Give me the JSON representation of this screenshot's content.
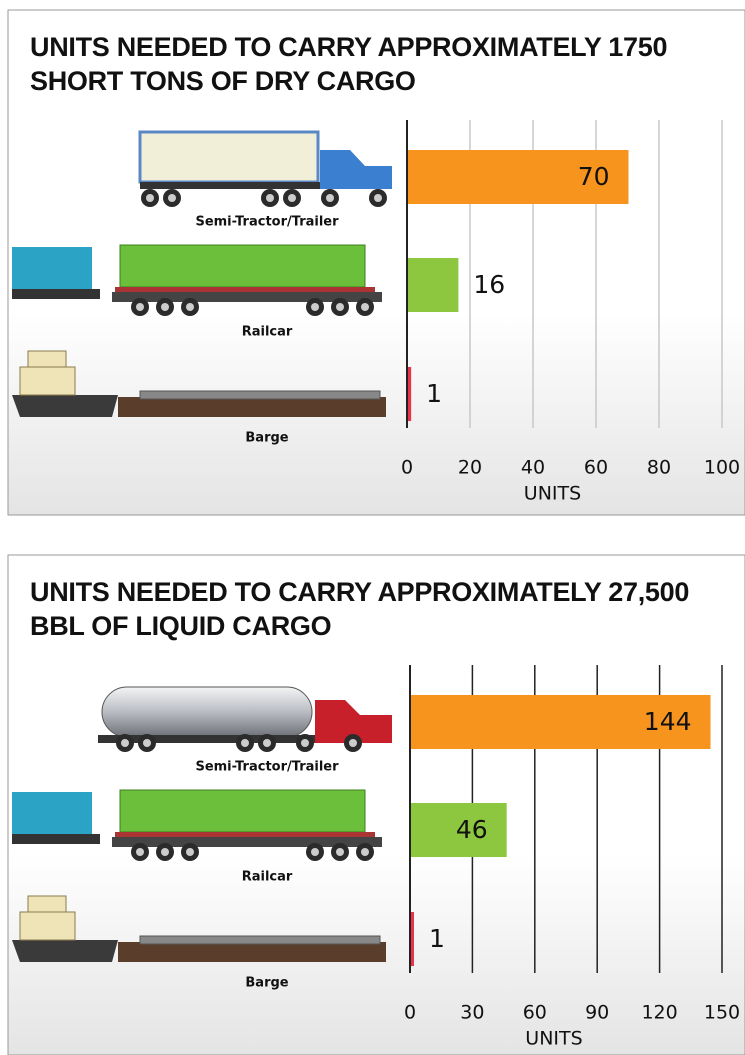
{
  "chart_data": [
    {
      "type": "bar",
      "orientation": "horizontal",
      "title": "UNITS NEEDED TO CARRY APPROXIMATELY 1750 SHORT TONS OF DRY CARGO",
      "categories": [
        "Semi-Tractor/Trailer",
        "Railcar",
        "Barge"
      ],
      "values": [
        70,
        16,
        1
      ],
      "colors": [
        "#f7941d",
        "#8dc63f",
        "#e8334a"
      ],
      "xlim": [
        0,
        100
      ],
      "xticks": [
        0,
        20,
        40,
        60,
        80,
        100
      ],
      "xlabel": "UNITS",
      "grid": true,
      "grid_color": "#c8c8c8"
    },
    {
      "type": "bar",
      "orientation": "horizontal",
      "title": "UNITS NEEDED TO CARRY APPROXIMATELY 27,500 BBL OF LIQUID CARGO",
      "categories": [
        "Semi-Tractor/Trailer",
        "Railcar",
        "Barge"
      ],
      "values": [
        144,
        46,
        1
      ],
      "colors": [
        "#f7941d",
        "#8dc63f",
        "#e8334a"
      ],
      "xlim": [
        0,
        150
      ],
      "xticks": [
        0,
        30,
        60,
        90,
        120,
        150
      ],
      "xlabel": "UNITS",
      "grid": true,
      "grid_color": "#222222"
    }
  ]
}
